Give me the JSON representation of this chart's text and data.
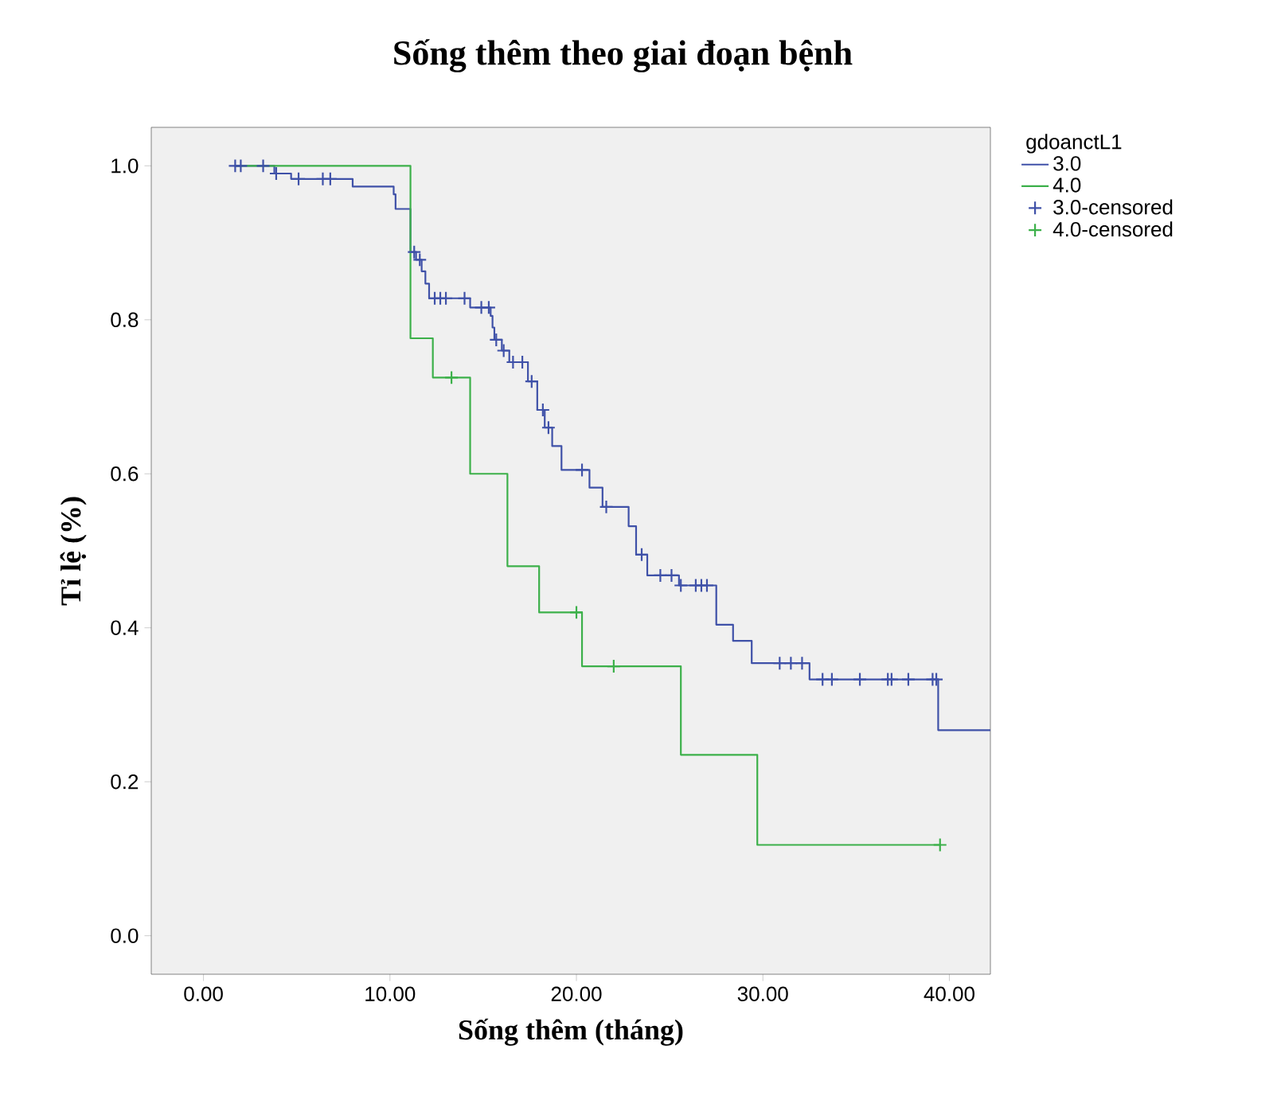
{
  "chart_data": {
    "type": "step",
    "title": "Sống thêm theo giai đoạn bệnh",
    "xlabel": "Sống thêm (tháng)",
    "ylabel": "Tỉ lệ (%)",
    "legend_title": "gdoanctL1",
    "legend": "right",
    "grid": false,
    "xlim": [
      -2.8,
      42.2
    ],
    "ylim": [
      -0.05,
      1.05
    ],
    "xticks": [
      {
        "value": 0,
        "label": "0.00"
      },
      {
        "value": 10,
        "label": "10.00"
      },
      {
        "value": 20,
        "label": "20.00"
      },
      {
        "value": 30,
        "label": "30.00"
      },
      {
        "value": 40,
        "label": "40.00"
      }
    ],
    "yticks": [
      {
        "value": 0,
        "label": "0.0"
      },
      {
        "value": 0.2,
        "label": "0.2"
      },
      {
        "value": 0.4,
        "label": "0.4"
      },
      {
        "value": 0.6,
        "label": "0.6"
      },
      {
        "value": 0.8,
        "label": "0.8"
      },
      {
        "value": 1.0,
        "label": "1.0"
      }
    ],
    "series": [
      {
        "name": "3.0",
        "color": "#3f51a8",
        "x": [
          1.7,
          3.8,
          4.7,
          8.0,
          10.2,
          10.3,
          11.1,
          11.4,
          11.7,
          11.9,
          12.1,
          14.3,
          15.4,
          15.5,
          15.6,
          16.0,
          16.4,
          17.4,
          17.9,
          18.3,
          18.7,
          19.2,
          20.7,
          21.4,
          22.8,
          23.2,
          23.8,
          25.5,
          27.5,
          28.4,
          29.4,
          32.5,
          39.4,
          42.2
        ],
        "values": [
          1.0,
          0.99,
          0.983,
          0.973,
          0.963,
          0.944,
          0.888,
          0.878,
          0.863,
          0.847,
          0.828,
          0.816,
          0.805,
          0.79,
          0.774,
          0.76,
          0.745,
          0.72,
          0.683,
          0.66,
          0.636,
          0.605,
          0.582,
          0.557,
          0.532,
          0.495,
          0.468,
          0.455,
          0.404,
          0.383,
          0.354,
          0.333,
          0.267,
          0.267
        ]
      },
      {
        "name": "4.0",
        "color": "#3cb04a",
        "x": [
          1.7,
          11.1,
          12.3,
          14.3,
          16.3,
          18.0,
          20.3,
          25.6,
          29.7,
          39.5
        ],
        "values": [
          1.0,
          0.776,
          0.725,
          0.6,
          0.48,
          0.42,
          0.35,
          0.235,
          0.118,
          0.118
        ]
      },
      {
        "name": "3.0-censored",
        "type": "scatter",
        "marker": "cross",
        "color": "#3f51a8",
        "x": [
          1.7,
          2.0,
          3.2,
          3.9,
          5.1,
          6.4,
          6.8,
          11.3,
          11.6,
          12.4,
          12.7,
          13.0,
          14.0,
          14.9,
          15.3,
          15.7,
          16.1,
          16.6,
          17.1,
          17.6,
          18.2,
          18.5,
          20.3,
          21.6,
          23.5,
          24.5,
          25.1,
          25.6,
          26.4,
          26.7,
          27.0,
          30.9,
          31.5,
          32.1,
          33.2,
          33.7,
          35.2,
          36.7,
          36.9,
          37.8,
          39.1,
          39.3
        ],
        "values": [
          1.0,
          1.0,
          1.0,
          0.99,
          0.983,
          0.983,
          0.983,
          0.888,
          0.878,
          0.828,
          0.828,
          0.828,
          0.828,
          0.816,
          0.816,
          0.774,
          0.76,
          0.745,
          0.745,
          0.72,
          0.683,
          0.66,
          0.605,
          0.557,
          0.495,
          0.468,
          0.468,
          0.455,
          0.455,
          0.455,
          0.455,
          0.354,
          0.354,
          0.354,
          0.333,
          0.333,
          0.333,
          0.333,
          0.333,
          0.333,
          0.333,
          0.333
        ]
      },
      {
        "name": "4.0-censored",
        "type": "scatter",
        "marker": "cross",
        "color": "#3cb04a",
        "x": [
          13.3,
          20.0,
          22.0,
          39.5
        ],
        "values": [
          0.725,
          0.42,
          0.35,
          0.118
        ]
      }
    ]
  }
}
